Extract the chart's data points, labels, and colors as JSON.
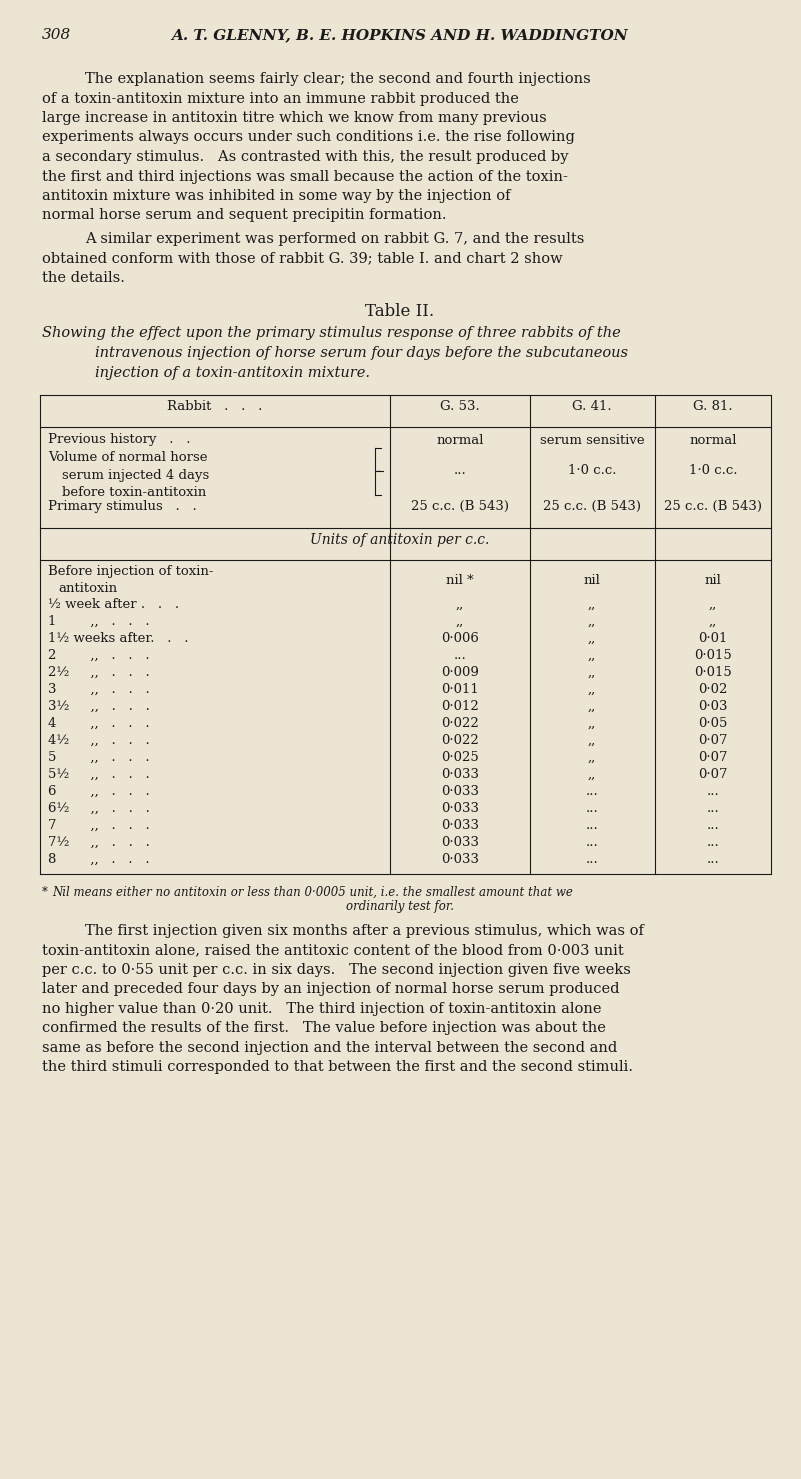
{
  "bg_color": "#ede5d4",
  "text_color": "#1a1a1a",
  "page_number": "308",
  "header": "A. T. GLENNY, B. E. HOPKINS AND H. WADDINGTON",
  "para1_lines": [
    "The explanation seems fairly clear; the second and fourth injections",
    "of a toxin-antitoxin mixture into an immune rabbit produced the",
    "large increase in antitoxin titre which we know from many previous",
    "experiments always occurs under such conditions i.e. the rise following",
    "a secondary stimulus.   As contrasted with this, the result produced by",
    "the first and third injections was small because the action of the toxin-",
    "antitoxin mixture was inhibited in some way by the injection of",
    "normal horse serum and sequent precipitin formation."
  ],
  "para2_lines": [
    "A similar experiment was performed on rabbit G. 7, and the results",
    "obtained conform with those of rabbit G. 39; table I. and chart 2 show",
    "the details."
  ],
  "table_title": "Table II.",
  "subtitle_lines": [
    "Showing the effect upon the primary stimulus response of three rabbits of the",
    "intravenous injection of horse serum four days before the subcutaneous",
    "injection of a toxin-antitoxin mixture."
  ],
  "ditto": ",,",
  "para3_lines": [
    "The first injection given six months after a previous stimulus, which was of",
    "toxin-antitoxin alone, raised the antitoxic content of the blood from 0·003 unit",
    "per c.c. to 0·55 unit per c.c. in six days.   The second injection given five weeks",
    "later and preceded four days by an injection of normal horse serum produced",
    "no higher value than 0·20 unit.   The third injection of toxin-antitoxin alone",
    "confirmed the results of the first.   The value before injection was about the",
    "same as before the second injection and the interval between the second and",
    "the third stimuli corresponded to that between the first and the second stimuli."
  ]
}
